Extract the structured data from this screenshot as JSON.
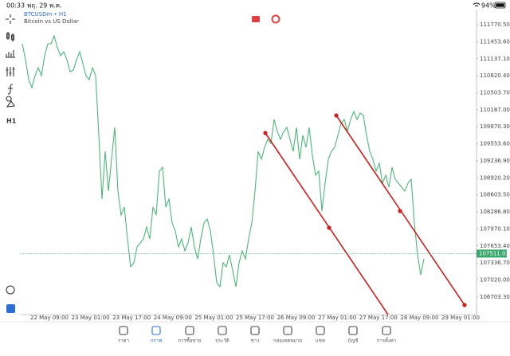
{
  "status_bar": {
    "time": "00:33",
    "date": "พฤ. 29 พ.ค.",
    "battery": "94%"
  },
  "toolbar": {
    "timeframe": "H1"
  },
  "chart_data": {
    "type": "line",
    "symbol": "BTCUSDm • H1",
    "subtitle": "Bitcoin vs US Dollar",
    "x_labels": [
      "22 May 09:00",
      "23 May 01:00",
      "23 May 17:00",
      "24 May 09:00",
      "25 May 01:00",
      "25 May 17:00",
      "26 May 09:00",
      "27 May 01:00",
      "27 May 17:00",
      "28 May 09:00",
      "29 May 01:00"
    ],
    "series": [
      {
        "name": "BTCUSDm",
        "color": "#4cb87a",
        "values": [
          111415,
          111118,
          110748,
          110600,
          110822,
          110970,
          110822,
          111193,
          111415,
          111415,
          111563,
          111341,
          111193,
          111267,
          111118,
          110896,
          110926,
          111118,
          111267,
          111044,
          110822,
          110748,
          110970,
          110822,
          109711,
          108525,
          109414,
          108673,
          109266,
          109859,
          108673,
          108229,
          108377,
          107784,
          107265,
          107339,
          107636,
          107710,
          107784,
          108006,
          107784,
          108377,
          108229,
          109044,
          109118,
          108377,
          108525,
          108080,
          107932,
          107636,
          107784,
          107562,
          107710,
          108006,
          107636,
          107413,
          107784,
          108080,
          108154,
          107932,
          107488,
          106969,
          106895,
          107339,
          107265,
          107488,
          107191,
          106895,
          107339,
          107562,
          107413,
          107784,
          108080,
          108673,
          109414,
          109266,
          109488,
          109636,
          109562,
          110007,
          109785,
          109636,
          109785,
          109859,
          109636,
          109414,
          109859,
          109266,
          109711,
          109488,
          109859,
          109340,
          108970,
          109044,
          108303,
          108821,
          109266,
          109414,
          109488,
          109711,
          109933,
          110007,
          109785,
          110007,
          110155,
          110007,
          110126,
          110081,
          109711,
          109414,
          109266,
          109044,
          109192,
          108821,
          108970,
          108747,
          109118,
          108895,
          108821,
          108747,
          108673,
          108821,
          108895,
          108080,
          107488,
          107117,
          107413
        ]
      }
    ],
    "last_price": 107511.03,
    "last_price_color": "#3aa76d",
    "ylim": [
      106376,
      112082
    ],
    "yticks": [
      {
        "value": 111770.5,
        "label": "111770.50"
      },
      {
        "value": 111453.6,
        "label": "111453.60"
      },
      {
        "value": 111137.1,
        "label": "111137.10"
      },
      {
        "value": 110820.4,
        "label": "110820.40"
      },
      {
        "value": 110503.7,
        "label": "110503.70"
      },
      {
        "value": 110187,
        "label": "110187.00"
      },
      {
        "value": 109870.3,
        "label": "109870.30"
      },
      {
        "value": 109553.6,
        "label": "109553.60"
      },
      {
        "value": 109236.9,
        "label": "109236.90"
      },
      {
        "value": 108920.2,
        "label": "108920.20"
      },
      {
        "value": 108603.5,
        "label": "108603.50"
      },
      {
        "value": 108286.8,
        "label": "108286.80"
      },
      {
        "value": 107970.1,
        "label": "107970.10"
      },
      {
        "value": 107653.4,
        "label": "107653.40"
      },
      {
        "value": 107336.7,
        "label": "107336.70"
      },
      {
        "value": 107020,
        "label": "107020.00"
      },
      {
        "value": 106703.3,
        "label": "106703.30"
      }
    ]
  },
  "nav": {
    "items": [
      "ราคา",
      "กราฟ",
      "การซื้อขาย",
      "ประวัติ",
      "ข่าว",
      "กล่องจดหมาย",
      "แชท",
      "บัญชี",
      "การตั้งค่า"
    ],
    "active": 1
  }
}
